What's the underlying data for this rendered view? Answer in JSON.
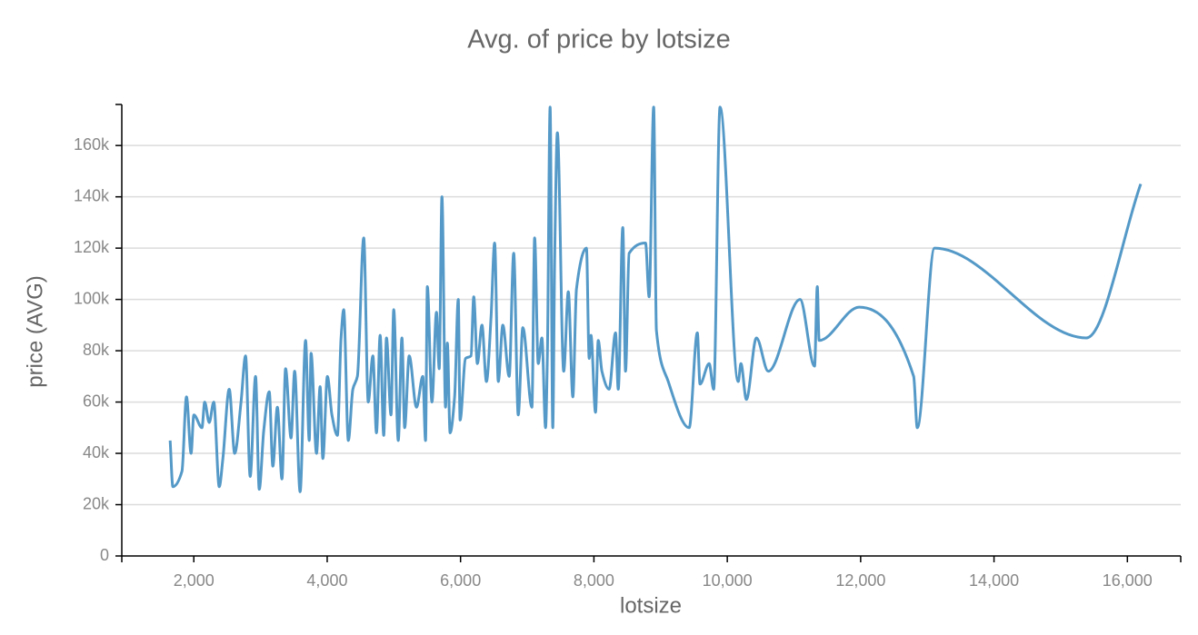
{
  "chart_data": {
    "type": "line",
    "title": "Avg. of price by lotsize",
    "x_label": "lotsize",
    "y_label": "price (AVG)",
    "color": "#5499c7",
    "grid": true,
    "xlim": [
      920,
      16800
    ],
    "xticks": [
      {
        "value": 2000,
        "label": "2,000"
      },
      {
        "value": 4000,
        "label": "4,000"
      },
      {
        "value": 6000,
        "label": "6,000"
      },
      {
        "value": 8000,
        "label": "8,000"
      },
      {
        "value": 10000,
        "label": "10,000"
      },
      {
        "value": 12000,
        "label": "12,000"
      },
      {
        "value": 14000,
        "label": "14,000"
      },
      {
        "value": 16000,
        "label": "16,000"
      }
    ],
    "ylim": [
      0,
      176000
    ],
    "yticks": [
      0,
      {
        "value": 20000,
        "label": "20k"
      },
      {
        "value": 40000,
        "label": "40k"
      },
      {
        "value": 60000,
        "label": "60k"
      },
      {
        "value": 80000,
        "label": "80k"
      },
      {
        "value": 100000,
        "label": "100k"
      },
      {
        "value": 120000,
        "label": "120k"
      },
      {
        "value": 140000,
        "label": "140k"
      },
      {
        "value": 160000,
        "label": "160k"
      }
    ],
    "x": [
      1645,
      1686,
      1822,
      1890,
      1959,
      2000,
      2122,
      2163,
      2231,
      2299,
      2381,
      2436,
      2531,
      2613,
      2708,
      2776,
      2845,
      2926,
      2981,
      3049,
      3131,
      3185,
      3253,
      3322,
      3376,
      3458,
      3512,
      3594,
      3676,
      3731,
      3758,
      3840,
      3894,
      3935,
      4003,
      4071,
      4153,
      4208,
      4248,
      4317,
      4385,
      4453,
      4548,
      4616,
      4685,
      4739,
      4794,
      4848,
      4889,
      4957,
      4998,
      5066,
      5121,
      5162,
      5230,
      5339,
      5434,
      5475,
      5502,
      5571,
      5639,
      5680,
      5721,
      5775,
      5802,
      5843,
      5911,
      5966,
      5993,
      6075,
      6157,
      6198,
      6252,
      6321,
      6388,
      6457,
      6511,
      6566,
      6634,
      6729,
      6797,
      6865,
      6934,
      7070,
      7111,
      7165,
      7220,
      7275,
      7302,
      7343,
      7383,
      7411,
      7452,
      7547,
      7616,
      7684,
      7738,
      7888,
      7929,
      7956,
      8024,
      8065,
      8120,
      8228,
      8324,
      8365,
      8433,
      8474,
      8528,
      8774,
      8828,
      8896,
      8937,
      9115,
      9428,
      9551,
      9591,
      9728,
      9796,
      9891,
      10164,
      10205,
      10286,
      10437,
      10614,
      11091,
      11309,
      11350,
      11377,
      11977,
      12795,
      12849,
      13108,
      15384,
      16200
    ],
    "values": [
      45000,
      27000,
      33000,
      62000,
      40000,
      55000,
      50000,
      60000,
      52000,
      60000,
      27000,
      38000,
      65000,
      40000,
      60000,
      78000,
      31000,
      70000,
      26000,
      49000,
      64000,
      35000,
      58000,
      30000,
      73000,
      46000,
      72000,
      25000,
      84000,
      45000,
      79000,
      40000,
      66000,
      38000,
      70000,
      55000,
      47000,
      85000,
      96000,
      45000,
      65000,
      70000,
      124000,
      60000,
      78000,
      48000,
      86000,
      47000,
      85000,
      55000,
      96000,
      45000,
      85000,
      50000,
      78000,
      58000,
      70000,
      45000,
      105000,
      60000,
      95000,
      73000,
      140000,
      58000,
      83000,
      48000,
      62000,
      100000,
      53000,
      77000,
      78000,
      101000,
      75000,
      90000,
      68000,
      93000,
      122000,
      68000,
      90000,
      70000,
      118000,
      55000,
      89000,
      58000,
      124000,
      75000,
      85000,
      50000,
      78000,
      175000,
      50000,
      115000,
      165000,
      72000,
      103000,
      62000,
      104000,
      120000,
      77000,
      86000,
      56000,
      84000,
      72000,
      65000,
      87000,
      65000,
      128000,
      72000,
      118000,
      122000,
      101000,
      175000,
      88000,
      68000,
      50000,
      87000,
      67000,
      75000,
      65000,
      175000,
      68000,
      75000,
      61000,
      85000,
      72000,
      100000,
      74000,
      105000,
      84000,
      97000,
      70000,
      50000,
      120000,
      85000,
      145000
    ]
  }
}
